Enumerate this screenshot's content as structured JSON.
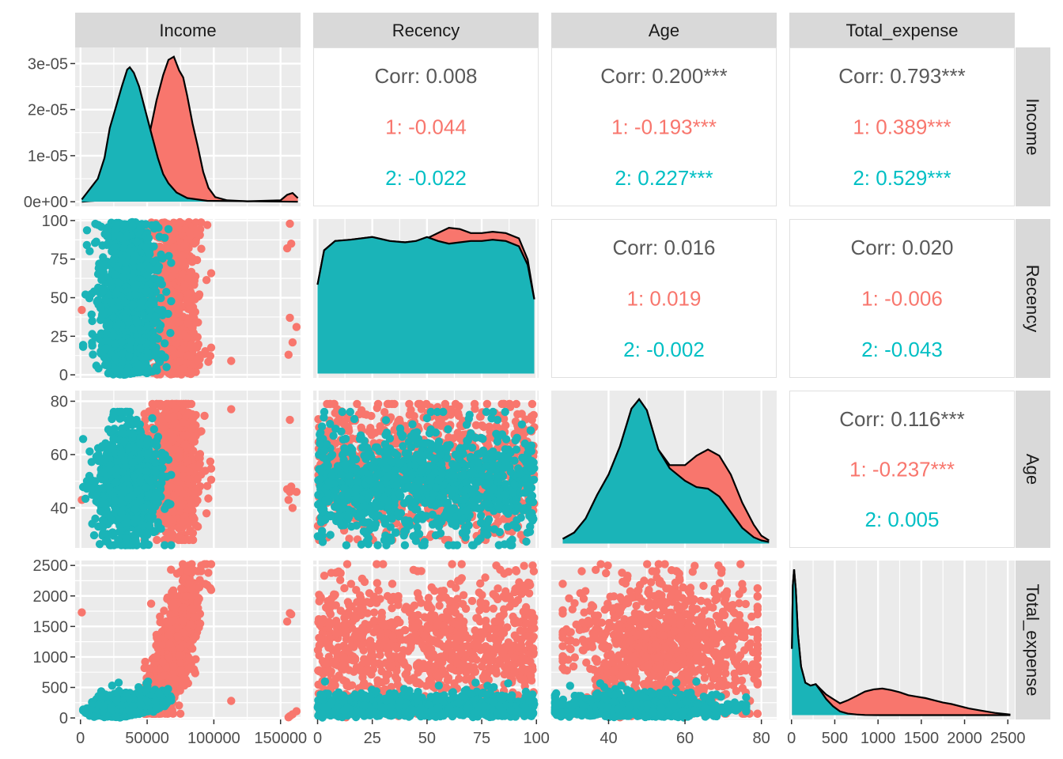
{
  "chart_data": {
    "type": "scatter",
    "variables": [
      "Income",
      "Recency",
      "Age",
      "Total_expense"
    ],
    "groups": [
      {
        "name": "1",
        "color": "#F8766D"
      },
      {
        "name": "2",
        "color": "#00BFC4"
      }
    ],
    "axes": {
      "Income": {
        "range": [
          -4000,
          165000
        ],
        "ticks": [
          0,
          50000,
          100000,
          150000
        ]
      },
      "Recency": {
        "range": [
          -2,
          101
        ],
        "ticks": [
          0,
          25,
          50,
          75,
          100
        ]
      },
      "Age": {
        "range": [
          25,
          84
        ],
        "ticks": [
          40,
          60,
          80
        ]
      },
      "Total_expense": {
        "range": [
          -25,
          2580
        ],
        "ticks": [
          0,
          500,
          1000,
          1500,
          2000,
          2500
        ]
      }
    },
    "density_y_axis": {
      "range": [
        -1e-06,
        3.35e-05
      ],
      "ticks": [
        0,
        1e-05,
        2e-05,
        3e-05
      ],
      "tick_labels": [
        "0e+00",
        "1e-05",
        "2e-05",
        "3e-05"
      ]
    },
    "correlations": [
      {
        "row": "Income",
        "col": "Recency",
        "overall": "Corr: 0.008",
        "g1": "1: -0.044",
        "g2": "2: -0.022"
      },
      {
        "row": "Income",
        "col": "Age",
        "overall": "Corr: 0.200***",
        "g1": "1: -0.193***",
        "g2": "2: 0.227***"
      },
      {
        "row": "Income",
        "col": "Total_expense",
        "overall": "Corr: 0.793***",
        "g1": "1: 0.389***",
        "g2": "2: 0.529***"
      },
      {
        "row": "Recency",
        "col": "Age",
        "overall": "Corr: 0.016",
        "g1": "1: 0.019",
        "g2": "2: -0.002"
      },
      {
        "row": "Recency",
        "col": "Total_expense",
        "overall": "Corr: 0.020",
        "g1": "1: -0.006",
        "g2": "2: -0.043"
      },
      {
        "row": "Age",
        "col": "Total_expense",
        "overall": "Corr: 0.116***",
        "g1": "1: -0.237***",
        "g2": "2: 0.005"
      }
    ],
    "densities": {
      "Income": {
        "g1": [
          [
            1000,
            0
          ],
          [
            10000,
            2e-07
          ],
          [
            25000,
            7e-07
          ],
          [
            38000,
            2e-06
          ],
          [
            45000,
            6e-06
          ],
          [
            52000,
            1.5e-05
          ],
          [
            57000,
            2.2e-05
          ],
          [
            62000,
            2.75e-05
          ],
          [
            66000,
            3.08e-05
          ],
          [
            70000,
            3.15e-05
          ],
          [
            74000,
            2.85e-05
          ],
          [
            77000,
            2.7e-05
          ],
          [
            80000,
            2.3e-05
          ],
          [
            84000,
            1.7e-05
          ],
          [
            88000,
            1.2e-05
          ],
          [
            92000,
            6.5e-06
          ],
          [
            96000,
            3e-06
          ],
          [
            101000,
            1e-06
          ],
          [
            110000,
            3e-07
          ],
          [
            125000,
            1e-07
          ],
          [
            150000,
            3e-07
          ],
          [
            155000,
            1.5e-06
          ],
          [
            159000,
            1.9e-06
          ],
          [
            163000,
            8e-07
          ]
        ],
        "g2": [
          [
            1000,
            5e-07
          ],
          [
            5000,
            2e-06
          ],
          [
            9000,
            3.5e-06
          ],
          [
            13000,
            5e-06
          ],
          [
            18000,
            9.5e-06
          ],
          [
            22000,
            1.6e-05
          ],
          [
            27000,
            2.1e-05
          ],
          [
            31000,
            2.5e-05
          ],
          [
            35000,
            2.87e-05
          ],
          [
            37000,
            2.92e-05
          ],
          [
            40000,
            2.8e-05
          ],
          [
            44000,
            2.5e-05
          ],
          [
            48000,
            2.05e-05
          ],
          [
            53000,
            1.5e-05
          ],
          [
            58000,
            9.5e-06
          ],
          [
            62000,
            6e-06
          ],
          [
            66000,
            4e-06
          ],
          [
            72000,
            2e-06
          ],
          [
            80000,
            8e-07
          ],
          [
            95000,
            2e-07
          ],
          [
            163000,
            0
          ]
        ]
      },
      "Recency": {
        "g1": [
          [
            0,
            0.67
          ],
          [
            3,
            0.93
          ],
          [
            8,
            1.0
          ],
          [
            15,
            1.01
          ],
          [
            25,
            1.03
          ],
          [
            33,
            1.0
          ],
          [
            40,
            0.99
          ],
          [
            45,
            1.0
          ],
          [
            50,
            1.02
          ],
          [
            55,
            1.06
          ],
          [
            60,
            1.1
          ],
          [
            65,
            1.09
          ],
          [
            70,
            1.06
          ],
          [
            75,
            1.06
          ],
          [
            80,
            1.07
          ],
          [
            86,
            1.06
          ],
          [
            92,
            1.02
          ],
          [
            96,
            0.86
          ],
          [
            99,
            0.56
          ]
        ],
        "g2": [
          [
            0,
            0.67
          ],
          [
            3,
            0.93
          ],
          [
            8,
            1.0
          ],
          [
            15,
            1.01
          ],
          [
            25,
            1.03
          ],
          [
            33,
            1.0
          ],
          [
            40,
            0.99
          ],
          [
            45,
            1.0
          ],
          [
            50,
            1.03
          ],
          [
            55,
            1.0
          ],
          [
            60,
            0.98
          ],
          [
            65,
            0.99
          ],
          [
            70,
            1.0
          ],
          [
            75,
            1.0
          ],
          [
            80,
            1.01
          ],
          [
            86,
            1.0
          ],
          [
            92,
            0.96
          ],
          [
            96,
            0.82
          ],
          [
            99,
            0.56
          ]
        ]
      },
      "Age": {
        "g1": [
          [
            28,
            0.03
          ],
          [
            31,
            0.07
          ],
          [
            34,
            0.16
          ],
          [
            37,
            0.31
          ],
          [
            40,
            0.44
          ],
          [
            43,
            0.62
          ],
          [
            46,
            0.86
          ],
          [
            48,
            0.92
          ],
          [
            50,
            0.85
          ],
          [
            53,
            0.6
          ],
          [
            56,
            0.5
          ],
          [
            60,
            0.5
          ],
          [
            63,
            0.56
          ],
          [
            66,
            0.6
          ],
          [
            69,
            0.56
          ],
          [
            72,
            0.44
          ],
          [
            75,
            0.26
          ],
          [
            78,
            0.12
          ],
          [
            80,
            0.05
          ],
          [
            82,
            0.02
          ]
        ],
        "g2": [
          [
            28,
            0.03
          ],
          [
            31,
            0.07
          ],
          [
            34,
            0.16
          ],
          [
            37,
            0.31
          ],
          [
            40,
            0.44
          ],
          [
            43,
            0.62
          ],
          [
            46,
            0.86
          ],
          [
            48,
            0.92
          ],
          [
            50,
            0.85
          ],
          [
            53,
            0.6
          ],
          [
            56,
            0.48
          ],
          [
            60,
            0.4
          ],
          [
            63,
            0.36
          ],
          [
            66,
            0.35
          ],
          [
            69,
            0.3
          ],
          [
            72,
            0.2
          ],
          [
            75,
            0.1
          ],
          [
            78,
            0.04
          ],
          [
            80,
            0.02
          ],
          [
            82,
            0.01
          ]
        ]
      },
      "Total_expense": {
        "g1": [
          [
            5,
            0.45
          ],
          [
            15,
            0.88
          ],
          [
            30,
            0.99
          ],
          [
            50,
            0.85
          ],
          [
            75,
            0.55
          ],
          [
            110,
            0.33
          ],
          [
            160,
            0.22
          ],
          [
            220,
            0.2
          ],
          [
            280,
            0.21
          ],
          [
            330,
            0.18
          ],
          [
            400,
            0.14
          ],
          [
            480,
            0.11
          ],
          [
            560,
            0.08
          ],
          [
            650,
            0.1
          ],
          [
            750,
            0.13
          ],
          [
            850,
            0.16
          ],
          [
            950,
            0.175
          ],
          [
            1050,
            0.18
          ],
          [
            1150,
            0.17
          ],
          [
            1250,
            0.155
          ],
          [
            1350,
            0.135
          ],
          [
            1450,
            0.125
          ],
          [
            1550,
            0.115
          ],
          [
            1650,
            0.1
          ],
          [
            1750,
            0.085
          ],
          [
            1850,
            0.075
          ],
          [
            1950,
            0.06
          ],
          [
            2050,
            0.045
          ],
          [
            2200,
            0.03
          ],
          [
            2350,
            0.015
          ],
          [
            2500,
            0.005
          ],
          [
            2530,
            0.003
          ]
        ],
        "g2": [
          [
            5,
            0.45
          ],
          [
            15,
            0.88
          ],
          [
            30,
            0.99
          ],
          [
            50,
            0.85
          ],
          [
            75,
            0.55
          ],
          [
            110,
            0.33
          ],
          [
            160,
            0.22
          ],
          [
            220,
            0.2
          ],
          [
            280,
            0.21
          ],
          [
            330,
            0.17
          ],
          [
            400,
            0.11
          ],
          [
            480,
            0.06
          ],
          [
            560,
            0.025
          ],
          [
            650,
            0.01
          ],
          [
            750,
            0.004
          ],
          [
            850,
            0.001
          ],
          [
            1000,
            0
          ],
          [
            2530,
            0
          ]
        ]
      }
    }
  }
}
